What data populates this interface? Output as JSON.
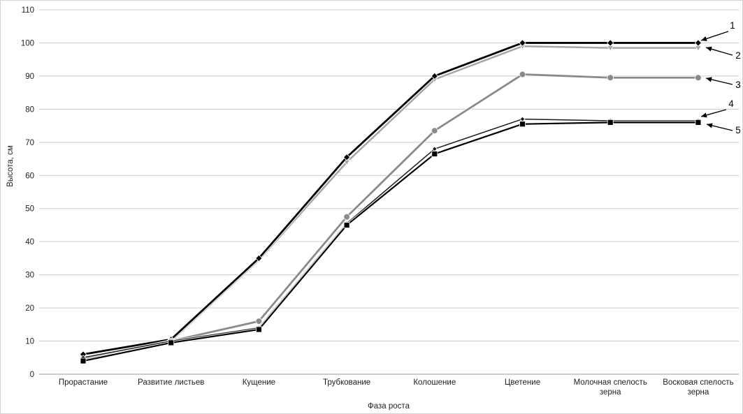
{
  "page": {
    "background": "#ffffff",
    "border_color": "#d4d4d4"
  },
  "chart_data": {
    "type": "line",
    "title": "",
    "xlabel": "Фаза роста",
    "ylabel": "Высота, см",
    "categories": [
      "Прорастание",
      "Развитие листьев",
      "Кущение",
      "Трубкование",
      "Колошение",
      "Цветение",
      "Молочная спелость зерна",
      "Восковая спелость зерна"
    ],
    "series": [
      {
        "name": "1",
        "color": "#000000",
        "marker": "diamond",
        "line_width": 2.8,
        "values": [
          6,
          10.5,
          35,
          65.5,
          90,
          100,
          100,
          100
        ]
      },
      {
        "name": "2",
        "color": "#a6a6a6",
        "marker": "triangle-down",
        "line_width": 2.5,
        "values": [
          5,
          10,
          34.5,
          64,
          89,
          99,
          98.5,
          98.5
        ]
      },
      {
        "name": "3",
        "color": "#8a8a8a",
        "marker": "circle",
        "line_width": 2.8,
        "values": [
          4.5,
          10,
          16,
          47.5,
          73.5,
          90.5,
          89.5,
          89.5
        ]
      },
      {
        "name": "4",
        "color": "#1a1a1a",
        "marker": "diamond-small",
        "line_width": 1.5,
        "values": [
          5,
          10,
          14,
          45.5,
          68,
          77,
          76.5,
          76.5
        ]
      },
      {
        "name": "5",
        "color": "#000000",
        "marker": "square",
        "line_width": 2.2,
        "values": [
          4,
          9.5,
          13.5,
          45,
          66.5,
          75.5,
          76,
          76
        ]
      }
    ],
    "ylim": [
      0,
      110
    ],
    "ytick_step": 10,
    "grid": true,
    "gridline_color": "#c9c9c9",
    "axis_line_color": "#9f9f9f",
    "text_color": "#1f1f1f",
    "legend": "numbered arrow callouts at right edge",
    "annotations": [
      {
        "label": "1"
      },
      {
        "label": "2"
      },
      {
        "label": "3"
      },
      {
        "label": "4"
      },
      {
        "label": "5"
      }
    ]
  }
}
